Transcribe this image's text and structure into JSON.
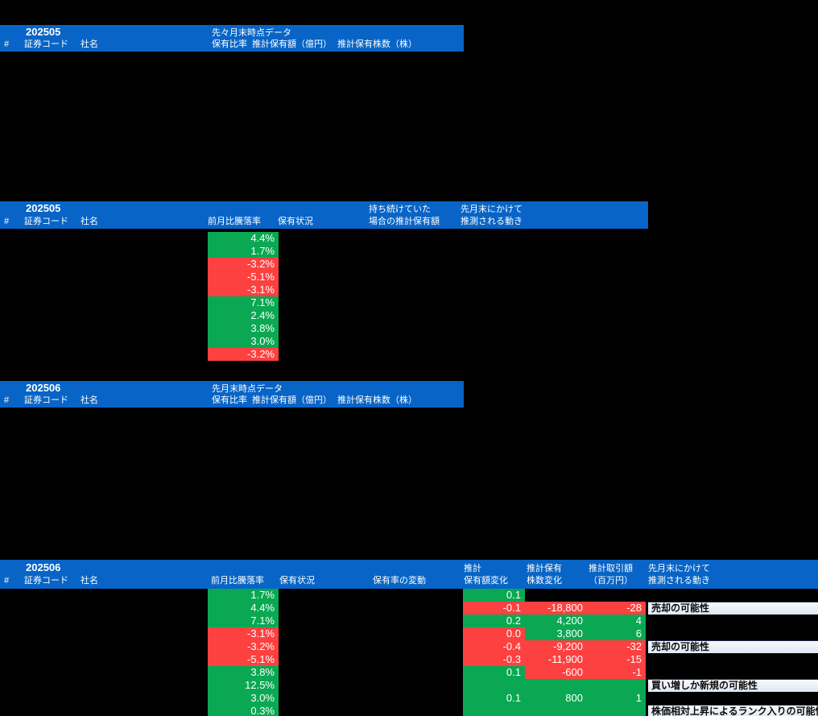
{
  "colors": {
    "header_bg": "#0864C6",
    "positive": "#0AA852",
    "negative": "#FD4141",
    "note_bg": "#E9EFF8",
    "note_text": "#0A0A0A",
    "header_text": "#FFFFFF",
    "canvas_bg": "#000000"
  },
  "sections": {
    "prev2": {
      "period": "202505",
      "snapshot_title": "先々月末時点データ",
      "columns": {
        "num": "#",
        "code": "証券コード",
        "name": "社名",
        "ratio": "保有比率",
        "est_amount": "推計保有額（億円）",
        "est_shares": "推計保有株数（株）"
      }
    },
    "prev2_moves": {
      "period": "202505",
      "columns": {
        "num": "#",
        "code": "証券コード",
        "name": "社名",
        "mom_change": "前月比騰落率",
        "holding_status": "保有状況",
        "held_value_l1": "持ち続けていた",
        "held_value_l2": "場合の推計保有額",
        "move_l1": "先月末にかけて",
        "move_l2": "推測される動き"
      },
      "rows": [
        {
          "mom_change": "4.4%",
          "trend": "positive"
        },
        {
          "mom_change": "1.7%",
          "trend": "positive"
        },
        {
          "mom_change": "-3.2%",
          "trend": "negative"
        },
        {
          "mom_change": "-5.1%",
          "trend": "negative"
        },
        {
          "mom_change": "-3.1%",
          "trend": "negative"
        },
        {
          "mom_change": "7.1%",
          "trend": "positive"
        },
        {
          "mom_change": "2.4%",
          "trend": "positive"
        },
        {
          "mom_change": "3.8%",
          "trend": "positive"
        },
        {
          "mom_change": "3.0%",
          "trend": "positive"
        },
        {
          "mom_change": "-3.2%",
          "trend": "negative"
        }
      ]
    },
    "prev1": {
      "period": "202506",
      "snapshot_title": "先月末時点データ",
      "columns": {
        "num": "#",
        "code": "証券コード",
        "name": "社名",
        "ratio": "保有比率",
        "est_amount": "推計保有額（億円）",
        "est_shares": "推計保有株数（株）"
      }
    },
    "prev1_moves": {
      "period": "202506",
      "columns": {
        "num": "#",
        "code": "証券コード",
        "name": "社名",
        "mom_change": "前月比騰落率",
        "holding_status": "保有状況",
        "ratio_change": "保有率の変動",
        "est_value_l1": "推計",
        "est_value_l2": "保有額変化",
        "est_shares_l1": "推計保有",
        "est_shares_l2": "株数変化",
        "est_trade_l1": "推計取引額",
        "est_trade_l2": "（百万円）",
        "move_l1": "先月末にかけて",
        "move_l2": "推測される動き"
      },
      "rows": [
        {
          "mom_change": "1.7%",
          "trend": "positive",
          "value_change": "0.1",
          "value_trend": "positive",
          "shares_change": "",
          "shares_trend": "",
          "trade_amount": "",
          "trade_trend": "",
          "note": ""
        },
        {
          "mom_change": "4.4%",
          "trend": "positive",
          "value_change": "-0.1",
          "value_trend": "negative",
          "shares_change": "-18,800",
          "shares_trend": "negative",
          "trade_amount": "-28",
          "trade_trend": "negative",
          "note": "売却の可能性"
        },
        {
          "mom_change": "7.1%",
          "trend": "positive",
          "value_change": "0.2",
          "value_trend": "positive",
          "shares_change": "4,200",
          "shares_trend": "positive",
          "trade_amount": "4",
          "trade_trend": "positive",
          "note": ""
        },
        {
          "mom_change": "-3.1%",
          "trend": "negative",
          "value_change": "0.0",
          "value_trend": "negative",
          "shares_change": "3,800",
          "shares_trend": "positive",
          "trade_amount": "6",
          "trade_trend": "positive",
          "note": ""
        },
        {
          "mom_change": "-3.2%",
          "trend": "negative",
          "value_change": "-0.4",
          "value_trend": "negative",
          "shares_change": "-9,200",
          "shares_trend": "negative",
          "trade_amount": "-32",
          "trade_trend": "negative",
          "note": "売却の可能性"
        },
        {
          "mom_change": "-5.1%",
          "trend": "negative",
          "value_change": "-0.3",
          "value_trend": "negative",
          "shares_change": "-11,900",
          "shares_trend": "negative",
          "trade_amount": "-15",
          "trade_trend": "negative",
          "note": ""
        },
        {
          "mom_change": "3.8%",
          "trend": "positive",
          "value_change": "0.1",
          "value_trend": "positive",
          "shares_change": "-600",
          "shares_trend": "negative",
          "trade_amount": "-1",
          "trade_trend": "negative",
          "note": ""
        },
        {
          "mom_change": "12.5%",
          "trend": "positive",
          "value_change": "",
          "value_trend": "positive",
          "shares_change": "",
          "shares_trend": "positive",
          "trade_amount": "",
          "trade_trend": "positive",
          "note": "買い増しか新規の可能性"
        },
        {
          "mom_change": "3.0%",
          "trend": "positive",
          "value_change": "0.1",
          "value_trend": "positive",
          "shares_change": "800",
          "shares_trend": "positive",
          "trade_amount": "1",
          "trade_trend": "positive",
          "note": ""
        },
        {
          "mom_change": "0.3%",
          "trend": "positive",
          "value_change": "",
          "value_trend": "positive",
          "shares_change": "",
          "shares_trend": "positive",
          "trade_amount": "",
          "trade_trend": "positive",
          "note": "株価相対上昇によるランク入りの可能性"
        }
      ]
    }
  }
}
